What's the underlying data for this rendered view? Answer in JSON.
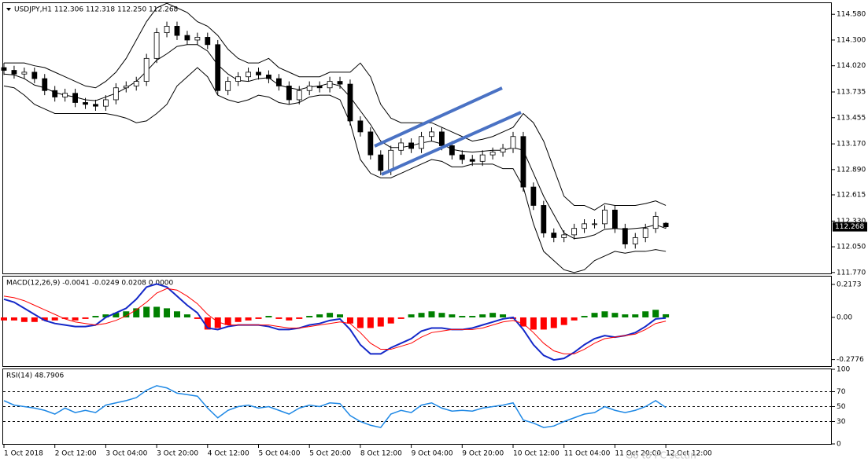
{
  "chart_data": [
    {
      "type": "candlestick",
      "title": "USDJPY,H1  112.306 112.318 112.250 112.268",
      "price_label": "112.268",
      "categories": [
        "1 Oct 2018",
        null,
        null,
        null,
        null,
        "2 Oct 12:00",
        null,
        null,
        null,
        null,
        "3 Oct 04:00",
        null,
        null,
        null,
        null,
        "3 Oct 20:00",
        null,
        null,
        null,
        null,
        "4 Oct 12:00",
        null,
        null,
        null,
        null,
        "5 Oct 04:00",
        null,
        null,
        null,
        null,
        "5 Oct 20:00",
        null,
        null,
        null,
        null,
        "8 Oct 12:00",
        null,
        null,
        null,
        null,
        "9 Oct 04:00",
        null,
        null,
        null,
        null,
        "9 Oct 20:00",
        null,
        null,
        null,
        null,
        "10 Oct 12:00",
        null,
        null,
        null,
        null,
        "11 Oct 04:00",
        null,
        null,
        null,
        null,
        "11 Oct 20:00",
        null,
        null,
        null,
        null,
        "12 Oct 12:00"
      ],
      "open": [
        114.0,
        113.97,
        113.93,
        113.95,
        113.88,
        113.75,
        113.68,
        113.72,
        113.62,
        113.6,
        113.58,
        113.65,
        113.78,
        113.8,
        113.85,
        114.1,
        114.38,
        114.45,
        114.35,
        114.3,
        114.33,
        114.25,
        113.75,
        113.85,
        113.9,
        113.95,
        113.92,
        113.88,
        113.8,
        113.65,
        113.75,
        113.8,
        113.78,
        113.85,
        113.82,
        113.42,
        113.3,
        113.05,
        112.88,
        113.1,
        113.18,
        113.12,
        113.25,
        113.3,
        113.15,
        113.05,
        113.0,
        112.98,
        113.05,
        113.08,
        113.12,
        113.25,
        112.7,
        112.5,
        112.2,
        112.15,
        112.18,
        112.25,
        112.3,
        112.3,
        112.45,
        112.25,
        112.08,
        112.15,
        112.25,
        112.306
      ],
      "high": [
        114.05,
        114.02,
        114.0,
        114.0,
        113.93,
        113.8,
        113.77,
        113.77,
        113.67,
        113.65,
        113.7,
        113.83,
        113.85,
        113.9,
        114.15,
        114.43,
        114.5,
        114.5,
        114.4,
        114.38,
        114.38,
        114.3,
        113.9,
        113.95,
        114.0,
        114.0,
        113.97,
        113.93,
        113.85,
        113.8,
        113.85,
        113.85,
        113.9,
        113.9,
        113.87,
        113.47,
        113.35,
        113.1,
        113.15,
        113.23,
        113.23,
        113.3,
        113.35,
        113.35,
        113.2,
        113.1,
        113.05,
        113.1,
        113.13,
        113.17,
        113.3,
        113.3,
        112.75,
        112.55,
        112.25,
        112.23,
        112.3,
        112.35,
        112.35,
        112.5,
        112.5,
        112.3,
        112.2,
        112.3,
        112.43,
        112.318
      ],
      "low": [
        113.92,
        113.88,
        113.88,
        113.83,
        113.7,
        113.63,
        113.63,
        113.57,
        113.55,
        113.53,
        113.53,
        113.6,
        113.73,
        113.75,
        113.8,
        114.05,
        114.33,
        114.3,
        114.25,
        114.25,
        114.2,
        113.7,
        113.7,
        113.8,
        113.85,
        113.87,
        113.83,
        113.75,
        113.6,
        113.6,
        113.7,
        113.73,
        113.73,
        113.77,
        113.37,
        113.25,
        113.0,
        112.83,
        112.83,
        113.05,
        113.07,
        113.07,
        113.2,
        113.1,
        113.0,
        112.95,
        112.93,
        112.93,
        113.0,
        113.03,
        113.07,
        112.65,
        112.45,
        112.15,
        112.1,
        112.1,
        112.13,
        112.2,
        112.25,
        112.25,
        112.2,
        112.03,
        112.03,
        112.1,
        112.2,
        112.25
      ],
      "close": [
        113.97,
        113.93,
        113.95,
        113.88,
        113.75,
        113.68,
        113.72,
        113.62,
        113.6,
        113.58,
        113.65,
        113.78,
        113.8,
        113.85,
        114.1,
        114.38,
        114.45,
        114.35,
        114.3,
        114.33,
        114.25,
        113.75,
        113.85,
        113.9,
        113.95,
        113.92,
        113.88,
        113.8,
        113.65,
        113.75,
        113.8,
        113.78,
        113.85,
        113.82,
        113.42,
        113.3,
        113.05,
        112.88,
        113.1,
        113.18,
        113.12,
        113.25,
        113.3,
        113.15,
        113.05,
        113.0,
        112.98,
        113.05,
        113.08,
        113.12,
        113.25,
        112.7,
        112.5,
        112.2,
        112.15,
        112.18,
        112.25,
        112.3,
        112.3,
        112.45,
        112.25,
        112.08,
        112.15,
        112.25,
        112.38,
        112.268
      ],
      "up_color": "#ffffff",
      "down_color": "#000000",
      "series": [
        {
          "color": "#000000",
          "values": [
            114.05,
            114.05,
            114.05,
            114.02,
            114.0,
            113.95,
            113.9,
            113.85,
            113.8,
            113.78,
            113.85,
            113.95,
            114.1,
            114.3,
            114.5,
            114.65,
            114.7,
            114.65,
            114.6,
            114.5,
            114.45,
            114.35,
            114.2,
            114.1,
            114.05,
            114.05,
            114.1,
            114.0,
            113.95,
            113.9,
            113.9,
            113.9,
            113.95,
            113.95,
            113.95,
            114.05,
            113.9,
            113.6,
            113.45,
            113.4,
            113.4,
            113.4,
            113.4,
            113.35,
            113.3,
            113.25,
            113.2,
            113.22,
            113.25,
            113.3,
            113.35,
            113.5,
            113.4,
            113.2,
            112.9,
            112.6,
            112.5,
            112.5,
            112.45,
            112.52,
            112.5,
            112.5,
            112.5,
            112.52,
            112.55,
            112.5
          ]
        },
        {
          "color": "#000000",
          "values": [
            113.93,
            113.92,
            113.88,
            113.81,
            113.78,
            113.73,
            113.7,
            113.68,
            113.65,
            113.64,
            113.68,
            113.72,
            113.78,
            113.85,
            113.96,
            114.08,
            114.15,
            114.23,
            114.25,
            114.25,
            114.18,
            114.03,
            113.93,
            113.86,
            113.85,
            113.88,
            113.89,
            113.81,
            113.78,
            113.76,
            113.79,
            113.8,
            113.83,
            113.8,
            113.68,
            113.53,
            113.38,
            113.2,
            113.13,
            113.13,
            113.15,
            113.18,
            113.2,
            113.17,
            113.11,
            113.09,
            113.08,
            113.09,
            113.1,
            113.1,
            113.13,
            113.1,
            112.85,
            112.6,
            112.4,
            112.2,
            112.14,
            112.15,
            112.18,
            112.24,
            112.25,
            112.24,
            112.25,
            112.26,
            112.29,
            112.25
          ]
        },
        {
          "color": "#000000",
          "values": [
            113.8,
            113.78,
            113.7,
            113.6,
            113.55,
            113.5,
            113.5,
            113.5,
            113.5,
            113.5,
            113.5,
            113.48,
            113.45,
            113.4,
            113.42,
            113.5,
            113.6,
            113.8,
            113.9,
            114.0,
            113.9,
            113.7,
            113.65,
            113.62,
            113.65,
            113.7,
            113.68,
            113.62,
            113.6,
            113.62,
            113.68,
            113.7,
            113.7,
            113.65,
            113.4,
            113.0,
            112.85,
            112.8,
            112.8,
            112.85,
            112.9,
            112.95,
            113.0,
            112.98,
            112.92,
            112.92,
            112.95,
            112.95,
            112.95,
            112.9,
            112.9,
            112.7,
            112.3,
            112.0,
            111.9,
            111.8,
            111.77,
            111.8,
            111.9,
            111.95,
            112.0,
            111.98,
            112.0,
            112.0,
            112.02,
            112.0
          ]
        }
      ],
      "ylim": [
        111.76,
        114.71
      ],
      "yticks": [
        {
          "value": 114.58,
          "label": "114.580"
        },
        {
          "value": 114.3,
          "label": "114.300"
        },
        {
          "value": 114.02,
          "label": "114.020"
        },
        {
          "value": 113.735,
          "label": "113.735"
        },
        {
          "value": 113.455,
          "label": "113.455"
        },
        {
          "value": 113.17,
          "label": "113.170"
        },
        {
          "value": 112.89,
          "label": "112.890"
        },
        {
          "value": 112.615,
          "label": "112.615"
        },
        {
          "value": 112.33,
          "label": "112.330"
        },
        {
          "value": 112.05,
          "label": "112.050"
        },
        {
          "value": 111.77,
          "label": "111.770"
        }
      ]
    },
    {
      "type": "combo",
      "title": "MACD(12,26,9) -0.0041 -0.0249 0.0208 0.0000",
      "series": [
        {
          "type": "bar",
          "up_color": "#008000",
          "down_color": "#ff0000",
          "values": [
            -0.02,
            -0.02,
            -0.03,
            -0.03,
            -0.02,
            -0.02,
            -0.01,
            -0.02,
            -0.01,
            0.01,
            0.02,
            0.03,
            0.04,
            0.06,
            0.07,
            0.07,
            0.06,
            0.04,
            0.02,
            -0.01,
            -0.08,
            -0.07,
            -0.05,
            -0.03,
            -0.02,
            -0.01,
            0.01,
            -0.01,
            -0.02,
            -0.01,
            0.01,
            0.02,
            0.03,
            0.02,
            -0.04,
            -0.07,
            -0.07,
            -0.06,
            -0.04,
            -0.01,
            0.02,
            0.03,
            0.04,
            0.03,
            0.02,
            0.01,
            0.01,
            0.02,
            0.03,
            0.02,
            -0.01,
            -0.06,
            -0.08,
            -0.08,
            -0.07,
            -0.05,
            -0.02,
            0.01,
            0.03,
            0.04,
            0.03,
            0.02,
            0.02,
            0.04,
            0.05,
            0.0208
          ]
        },
        {
          "type": "line",
          "color": "#1428c8",
          "width": 2,
          "values": [
            0.12,
            0.1,
            0.06,
            0.02,
            -0.02,
            -0.04,
            -0.05,
            -0.06,
            -0.06,
            -0.05,
            0.0,
            0.03,
            0.06,
            0.12,
            0.2,
            0.22,
            0.2,
            0.14,
            0.08,
            0.03,
            -0.07,
            -0.08,
            -0.06,
            -0.05,
            -0.05,
            -0.05,
            -0.06,
            -0.08,
            -0.08,
            -0.07,
            -0.05,
            -0.04,
            -0.02,
            -0.01,
            -0.08,
            -0.18,
            -0.24,
            -0.24,
            -0.2,
            -0.17,
            -0.14,
            -0.09,
            -0.07,
            -0.07,
            -0.08,
            -0.08,
            -0.07,
            -0.05,
            -0.03,
            -0.01,
            0.0,
            -0.08,
            -0.18,
            -0.25,
            -0.28,
            -0.27,
            -0.23,
            -0.18,
            -0.14,
            -0.12,
            -0.13,
            -0.12,
            -0.1,
            -0.06,
            -0.01,
            -0.0041
          ]
        },
        {
          "type": "line",
          "color": "#ff0000",
          "width": 1,
          "values": [
            0.14,
            0.13,
            0.11,
            0.08,
            0.05,
            0.02,
            -0.01,
            -0.03,
            -0.04,
            -0.05,
            -0.04,
            -0.02,
            0.01,
            0.05,
            0.1,
            0.16,
            0.19,
            0.18,
            0.14,
            0.09,
            0.02,
            -0.03,
            -0.05,
            -0.05,
            -0.05,
            -0.05,
            -0.05,
            -0.06,
            -0.07,
            -0.07,
            -0.06,
            -0.05,
            -0.04,
            -0.03,
            -0.04,
            -0.1,
            -0.17,
            -0.21,
            -0.21,
            -0.19,
            -0.17,
            -0.13,
            -0.1,
            -0.09,
            -0.08,
            -0.08,
            -0.08,
            -0.07,
            -0.05,
            -0.03,
            -0.02,
            -0.04,
            -0.1,
            -0.17,
            -0.22,
            -0.24,
            -0.24,
            -0.21,
            -0.17,
            -0.14,
            -0.13,
            -0.12,
            -0.11,
            -0.08,
            -0.04,
            -0.0249
          ]
        }
      ],
      "ylim": [
        -0.321,
        0.269
      ],
      "yticks": [
        0.2173,
        {
          "value": 0,
          "label": "0.00"
        },
        -0.2776
      ]
    },
    {
      "type": "line",
      "title": "RSI(14) 48.7906",
      "color": "#1e88e5",
      "values": [
        58,
        52,
        50,
        48,
        45,
        40,
        48,
        42,
        45,
        42,
        52,
        55,
        58,
        62,
        72,
        78,
        75,
        68,
        66,
        64,
        48,
        35,
        45,
        50,
        52,
        48,
        50,
        45,
        40,
        48,
        52,
        50,
        55,
        54,
        38,
        30,
        25,
        22,
        40,
        45,
        42,
        52,
        55,
        48,
        44,
        45,
        44,
        48,
        50,
        52,
        55,
        32,
        28,
        22,
        24,
        30,
        35,
        40,
        42,
        50,
        45,
        42,
        45,
        50,
        58,
        48.7906
      ],
      "levels": [
        70,
        50,
        30
      ],
      "ylim": [
        0,
        100
      ],
      "yticks": [
        100,
        70,
        50,
        30,
        0
      ]
    }
  ],
  "watermark": "Go to PC settin"
}
